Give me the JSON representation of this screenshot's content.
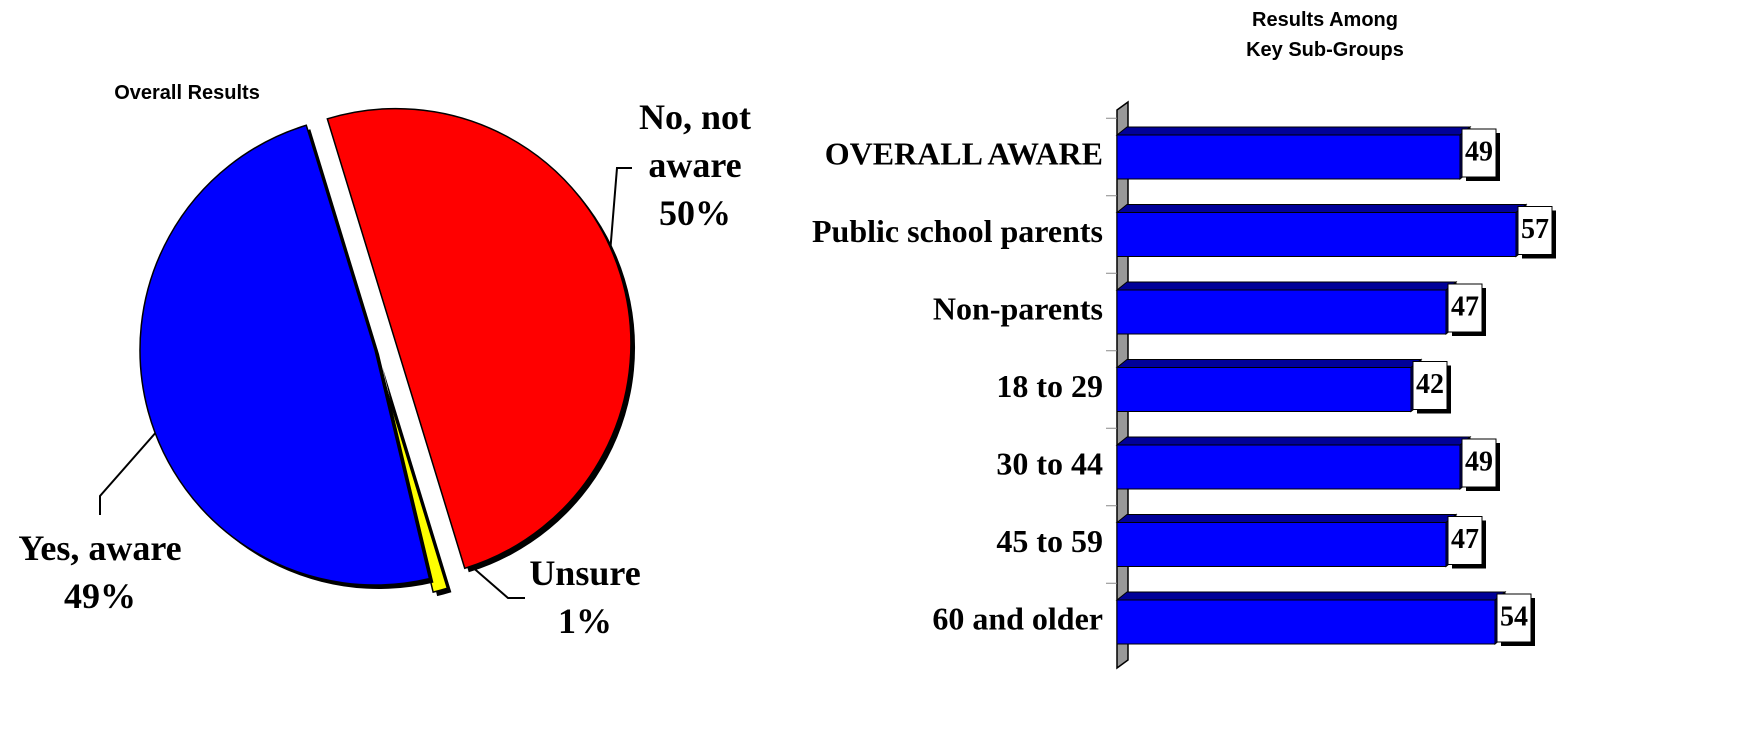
{
  "chart_data": [
    {
      "type": "pie",
      "title": "Overall Results",
      "categories": [
        "No, not aware",
        "Unsure",
        "Yes, aware"
      ],
      "values": [
        50,
        1,
        49
      ],
      "value_labels": [
        "50%",
        "1%",
        "49%"
      ],
      "colors": [
        "#ff0000",
        "#ffff00",
        "#0000ff"
      ]
    },
    {
      "type": "hbar",
      "title": "Results Among Key Sub-Groups",
      "categories": [
        "OVERALL AWARE",
        "Public school parents",
        "Non-parents",
        "18 to 29",
        "30 to 44",
        "45 to 59",
        "60 and older"
      ],
      "values": [
        49,
        57,
        47,
        42,
        49,
        47,
        54
      ],
      "color": "#0000ff",
      "xlim": [
        0,
        60
      ]
    }
  ]
}
